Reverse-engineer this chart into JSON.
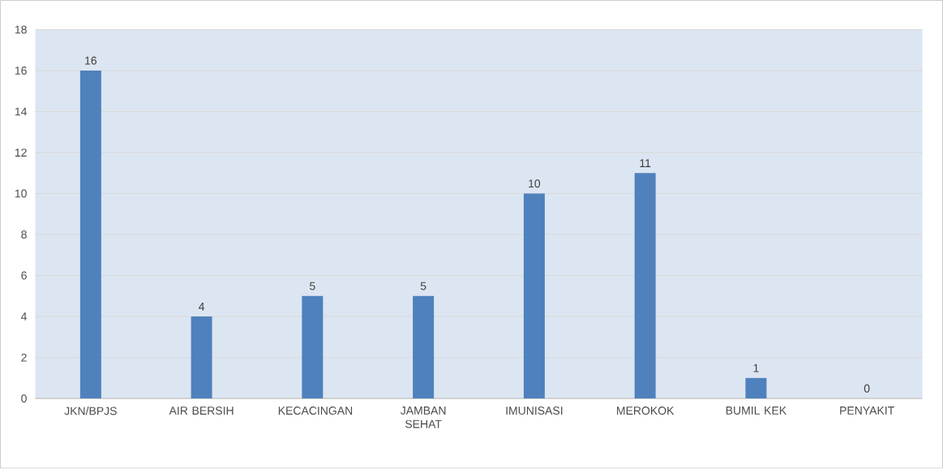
{
  "chart_data": {
    "type": "bar",
    "categories": [
      "JKN/BPJS",
      "AIR BERSIH",
      "KECACINGAN",
      "JAMBAN SEHAT",
      "IMUNISASI",
      "MEROKOK",
      "BUMIL KEK",
      "PENYAKIT"
    ],
    "values": [
      16,
      4,
      5,
      5,
      10,
      11,
      1,
      0
    ],
    "color": "#4f81bd",
    "ylim": [
      0,
      18
    ],
    "yticks": [
      0,
      2,
      4,
      6,
      8,
      10,
      12,
      14,
      16,
      18
    ],
    "grid": "y",
    "data_labels": true
  }
}
